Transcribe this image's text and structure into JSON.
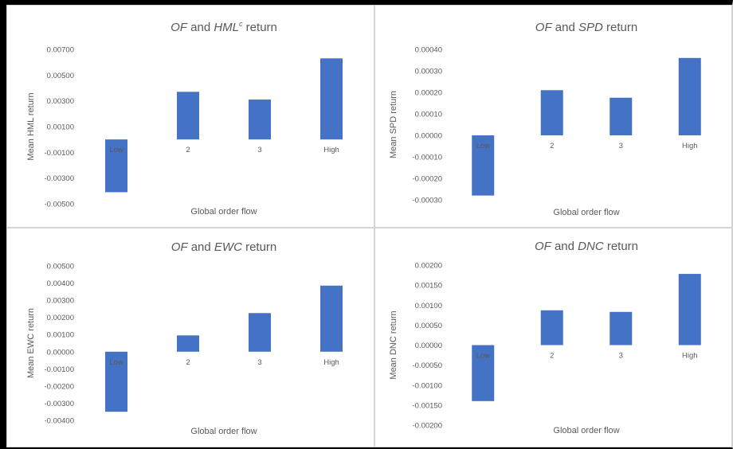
{
  "chart_data": [
    {
      "type": "bar",
      "title_italic_1": "OF",
      "title_mid": " and ",
      "title_italic_2": "HML",
      "title_sup": "c",
      "title_end": " return",
      "categories": [
        "Low",
        "2",
        "3",
        "High"
      ],
      "values": [
        -0.0041,
        0.0037,
        0.0031,
        0.0063
      ],
      "ylim": [
        -0.005,
        0.007
      ],
      "yticks": [
        0.007,
        0.005,
        0.003,
        0.001,
        -0.001,
        -0.003,
        -0.005
      ],
      "ytick_labels": [
        "0.00700",
        "0.00500",
        "0.00300",
        "0.00100",
        "-0.00100",
        "-0.00300",
        "-0.00500"
      ],
      "xlabel": "Global order flow",
      "ylabel": "Mean HML return",
      "color": "#4472c4"
    },
    {
      "type": "bar",
      "title_italic_1": "OF",
      "title_mid": " and ",
      "title_italic_2": "SPD",
      "title_sup": "",
      "title_end": " return",
      "categories": [
        "Low",
        "2",
        "3",
        "High"
      ],
      "values": [
        -0.00028,
        0.00021,
        0.000175,
        0.00036
      ],
      "ylim": [
        -0.0003,
        0.0004
      ],
      "yticks": [
        0.0004,
        0.0003,
        0.0002,
        0.0001,
        0.0,
        -0.0001,
        -0.0002,
        -0.0003
      ],
      "ytick_labels": [
        "0.00040",
        "0.00030",
        "0.00020",
        "0.00010",
        "0.00000",
        "-0.00010",
        "-0.00020",
        "-0.00030"
      ],
      "xlabel": "Global order flow",
      "ylabel": "Mean SPD return",
      "color": "#4472c4"
    },
    {
      "type": "bar",
      "title_italic_1": "OF",
      "title_mid": " and ",
      "title_italic_2": "EWC",
      "title_sup": "",
      "title_end": " return",
      "categories": [
        "Low",
        "2",
        "3",
        "High"
      ],
      "values": [
        -0.0035,
        0.00095,
        0.00225,
        0.00385
      ],
      "ylim": [
        -0.004,
        0.005
      ],
      "yticks": [
        0.005,
        0.004,
        0.003,
        0.002,
        0.001,
        0.0,
        -0.001,
        -0.002,
        -0.003,
        -0.004
      ],
      "ytick_labels": [
        "0.00500",
        "0.00400",
        "0.00300",
        "0.00200",
        "0.00100",
        "0.00000",
        "-0.00100",
        "-0.00200",
        "-0.00300",
        "-0.00400"
      ],
      "xlabel": "Global order flow",
      "ylabel": "Mean EWC return",
      "color": "#4472c4"
    },
    {
      "type": "bar",
      "title_italic_1": "OF",
      "title_mid": " and ",
      "title_italic_2": "DNC",
      "title_sup": "",
      "title_end": " return",
      "categories": [
        "Low",
        "2",
        "3",
        "High"
      ],
      "values": [
        -0.0014,
        0.00087,
        0.00083,
        0.00178
      ],
      "ylim": [
        -0.002,
        0.002
      ],
      "yticks": [
        0.002,
        0.0015,
        0.001,
        0.0005,
        0.0,
        -0.0005,
        -0.001,
        -0.0015,
        -0.002
      ],
      "ytick_labels": [
        "0.00200",
        "0.00150",
        "0.00100",
        "0.00050",
        "0.00000",
        "-0.00050",
        "-0.00100",
        "-0.00150",
        "-0.00200"
      ],
      "xlabel": "Global order flow",
      "ylabel": "Mean DNC return",
      "color": "#4472c4"
    }
  ]
}
